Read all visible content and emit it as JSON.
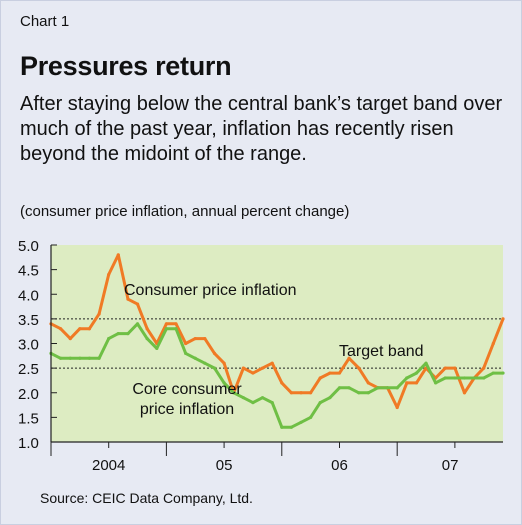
{
  "header": {
    "chart_label": "Chart 1",
    "title": "Pressures return",
    "subtitle": "After staying below the central bank’s target band over much of the past year, inflation has recently risen beyond the midoint of the range.",
    "units": "(consumer price inflation, annual percent change)"
  },
  "footer": {
    "source": "Source: CEIC Data Company, Ltd."
  },
  "chart_data": {
    "type": "line",
    "title": "Pressures return",
    "ylim": [
      1.0,
      5.0
    ],
    "yticks": [
      1.0,
      1.5,
      2.0,
      2.5,
      3.0,
      3.5,
      4.0,
      4.5,
      5.0
    ],
    "ytick_labels": [
      "1.0",
      "1.5",
      "2.0",
      "2.5",
      "3.0",
      "3.5",
      "4.0",
      "4.5",
      "5.0"
    ],
    "xlim": [
      2004.0,
      2007.917
    ],
    "xticks": [
      2004,
      2005,
      2006,
      2007
    ],
    "xtick_labels": [
      "2004",
      "05",
      "06",
      "07"
    ],
    "grid": false,
    "target_band": {
      "label": "Target band",
      "lower": 2.5,
      "upper": 3.5,
      "color": "#222222"
    },
    "colors": {
      "plot_background": "#ddecc2",
      "axis": "#222222"
    },
    "series": [
      {
        "name": "Consumer price inflation",
        "color": "#f07a25",
        "x": [
          2004.0,
          2004.083,
          2004.167,
          2004.25,
          2004.333,
          2004.417,
          2004.5,
          2004.583,
          2004.667,
          2004.75,
          2004.833,
          2004.917,
          2005.0,
          2005.083,
          2005.167,
          2005.25,
          2005.333,
          2005.417,
          2005.5,
          2005.583,
          2005.667,
          2005.75,
          2005.833,
          2005.917,
          2006.0,
          2006.083,
          2006.167,
          2006.25,
          2006.333,
          2006.417,
          2006.5,
          2006.583,
          2006.667,
          2006.75,
          2006.833,
          2006.917,
          2007.0,
          2007.083,
          2007.167,
          2007.25,
          2007.333,
          2007.417,
          2007.5,
          2007.583,
          2007.667,
          2007.75,
          2007.833,
          2007.917
        ],
        "values": [
          3.4,
          3.3,
          3.1,
          3.3,
          3.3,
          3.6,
          4.4,
          4.8,
          3.9,
          3.8,
          3.3,
          3.0,
          3.4,
          3.4,
          3.0,
          3.1,
          3.1,
          2.8,
          2.6,
          2.0,
          2.5,
          2.4,
          2.5,
          2.6,
          2.2,
          2.0,
          2.0,
          2.0,
          2.3,
          2.4,
          2.4,
          2.7,
          2.5,
          2.2,
          2.1,
          2.1,
          1.7,
          2.2,
          2.2,
          2.5,
          2.3,
          2.5,
          2.5,
          2.0,
          2.3,
          2.5,
          3.0,
          3.5
        ]
      },
      {
        "name": "Core consumer price inflation",
        "color": "#6fbf45",
        "x": [
          2004.0,
          2004.083,
          2004.167,
          2004.25,
          2004.333,
          2004.417,
          2004.5,
          2004.583,
          2004.667,
          2004.75,
          2004.833,
          2004.917,
          2005.0,
          2005.083,
          2005.167,
          2005.25,
          2005.333,
          2005.417,
          2005.5,
          2005.583,
          2005.667,
          2005.75,
          2005.833,
          2005.917,
          2006.0,
          2006.083,
          2006.167,
          2006.25,
          2006.333,
          2006.417,
          2006.5,
          2006.583,
          2006.667,
          2006.75,
          2006.833,
          2006.917,
          2007.0,
          2007.083,
          2007.167,
          2007.25,
          2007.333,
          2007.417,
          2007.5,
          2007.583,
          2007.667,
          2007.75,
          2007.833,
          2007.917
        ],
        "values": [
          2.8,
          2.7,
          2.7,
          2.7,
          2.7,
          2.7,
          3.1,
          3.2,
          3.2,
          3.4,
          3.1,
          2.9,
          3.3,
          3.3,
          2.8,
          2.7,
          2.6,
          2.5,
          2.2,
          2.0,
          1.9,
          1.8,
          1.9,
          1.8,
          1.3,
          1.3,
          1.4,
          1.5,
          1.8,
          1.9,
          2.1,
          2.1,
          2.0,
          2.0,
          2.1,
          2.1,
          2.1,
          2.3,
          2.4,
          2.6,
          2.2,
          2.3,
          2.3,
          2.3,
          2.3,
          2.3,
          2.4,
          2.4
        ]
      }
    ],
    "annotations": [
      {
        "text": "Consumer price inflation",
        "series": "Consumer price inflation"
      },
      {
        "text": "Target band"
      },
      {
        "text": "Core consumer\nprice inflation",
        "series": "Core consumer price inflation"
      }
    ]
  }
}
